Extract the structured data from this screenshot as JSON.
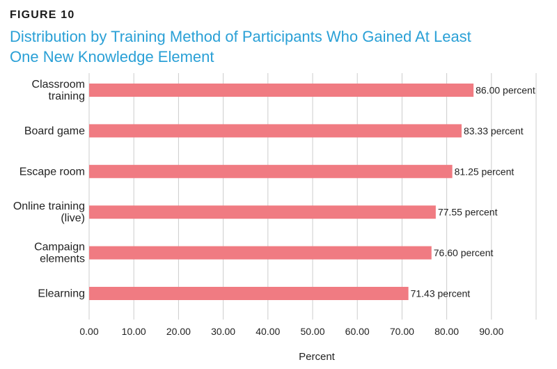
{
  "figure_label": "FIGURE 10",
  "title_line1": "Distribution by Training Method of Participants Who Gained At Least",
  "title_line2": "One New Knowledge Element",
  "colors": {
    "bar": "#f07b82",
    "title": "#2aa0d6",
    "grid": "#cccccc",
    "text": "#222222"
  },
  "chart_data": {
    "type": "bar",
    "orientation": "horizontal",
    "categories": [
      [
        "Classroom",
        "training"
      ],
      [
        "Board game"
      ],
      [
        "Escape room"
      ],
      [
        "Online training",
        "(live)"
      ],
      [
        "Campaign",
        "elements"
      ],
      [
        "Elearning"
      ]
    ],
    "values": [
      86.0,
      83.33,
      81.25,
      77.55,
      76.6,
      71.43
    ],
    "data_labels": [
      "86.00 percent",
      "83.33 percent",
      "81.25 percent",
      "77.55 percent",
      "76.60 percent",
      "71.43 percent"
    ],
    "xticks": [
      "0.00",
      "10.00",
      "20.00",
      "30.00",
      "40.00",
      "50.00",
      "60.00",
      "70.00",
      "80.00",
      "90.00"
    ],
    "xlim": [
      0,
      100
    ],
    "xlabel": "Percent",
    "ylabel": "",
    "grid": true
  }
}
